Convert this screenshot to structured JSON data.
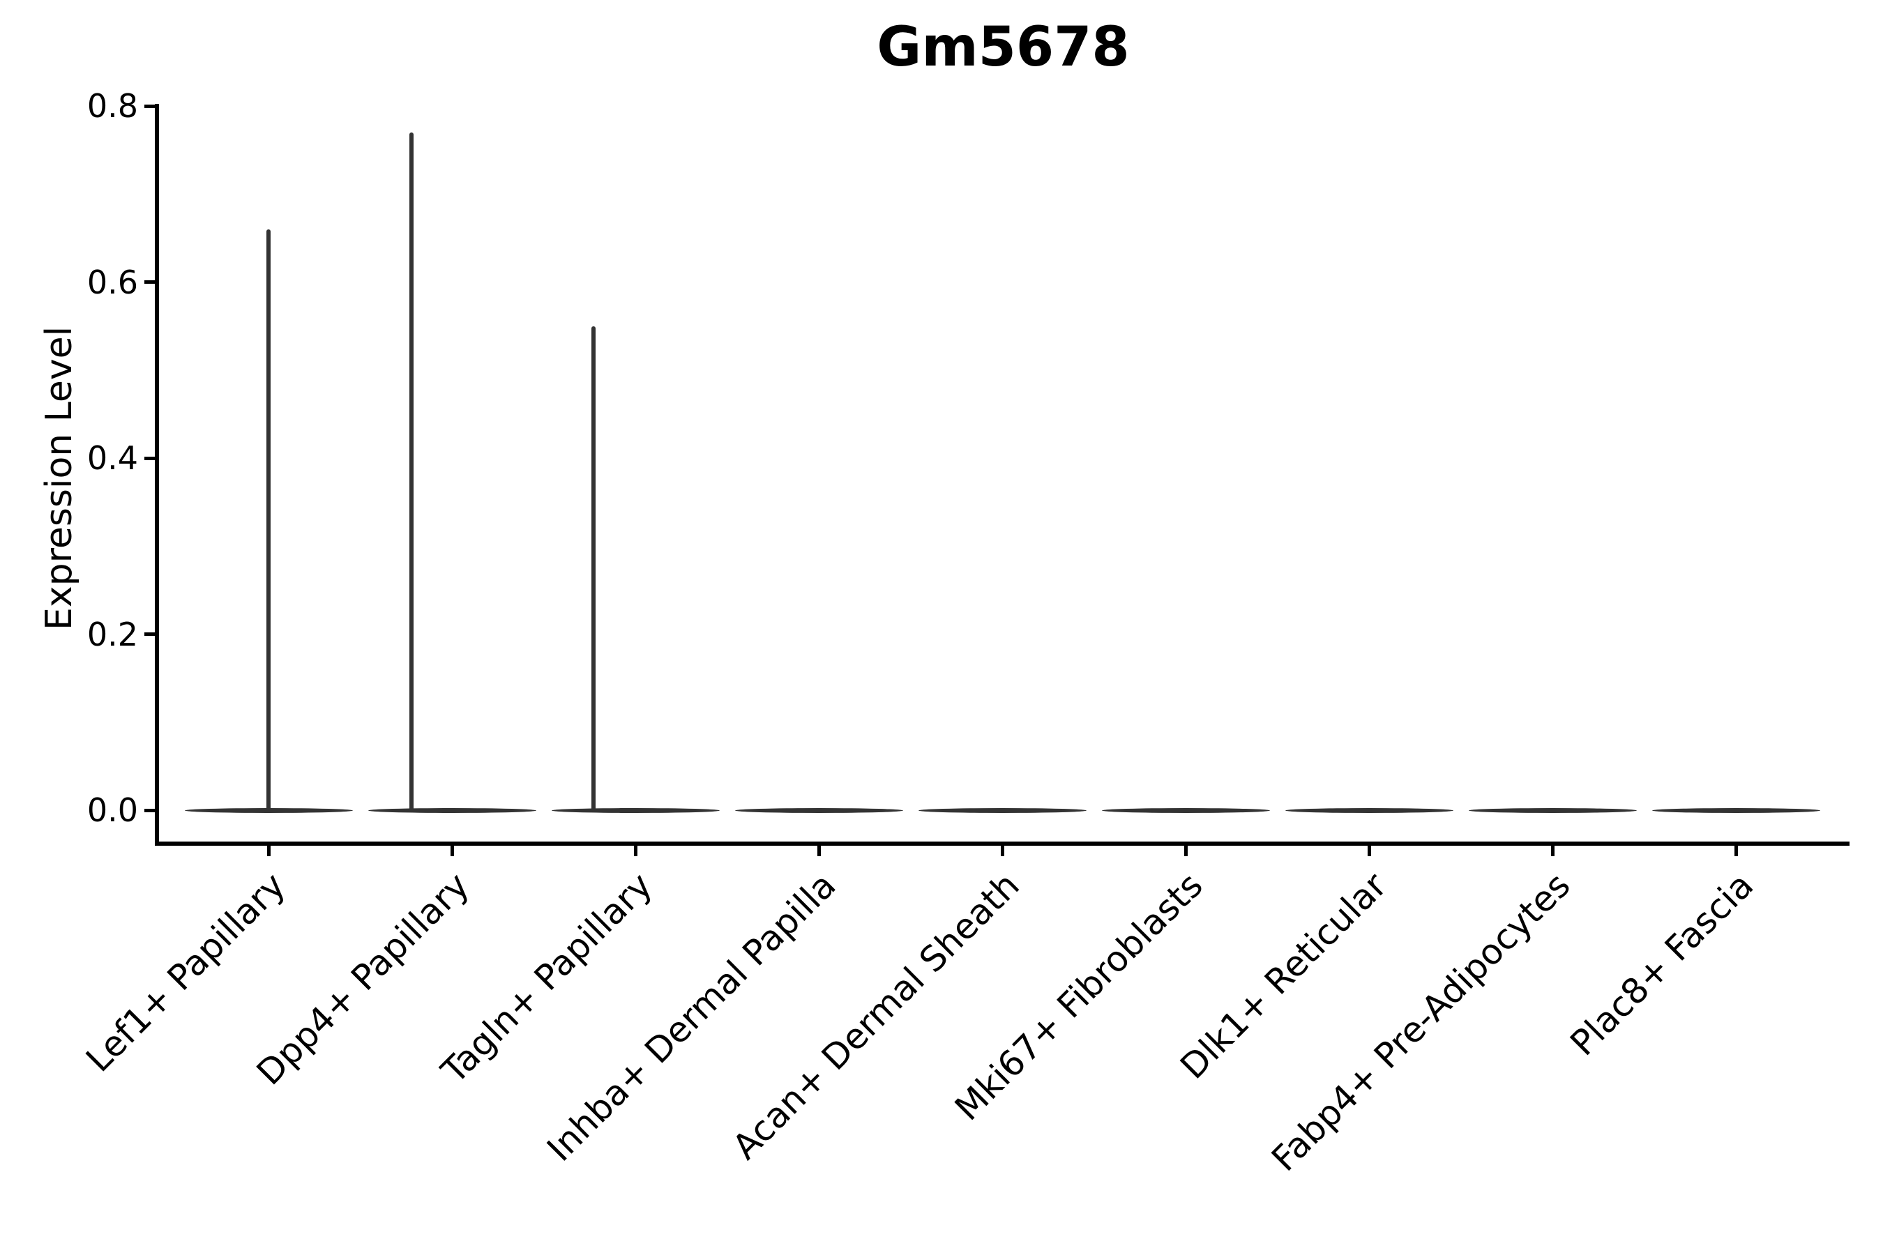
{
  "figure": {
    "title": "Gm5678",
    "y_axis_label": "Expression Level"
  },
  "chart_data": {
    "type": "violin",
    "title": "Gm5678",
    "xlabel": "",
    "ylabel": "Expression Level",
    "ylim": [
      0,
      0.8
    ],
    "yticks": [
      0.0,
      0.2,
      0.4,
      0.6,
      0.8
    ],
    "ytick_labels": [
      "0.0",
      "0.2",
      "0.4",
      "0.6",
      "0.8"
    ],
    "categories": [
      "Lef1+ Papillary",
      "Dpp4+ Papillary",
      "Tagln+ Papillary",
      "Inhba+ Dermal Papilla",
      "Acan+ Dermal Sheath",
      "Mki67+ Fibroblasts",
      "Dlk1+ Reticular",
      "Fabp4+ Pre-Adipocytes",
      "Plac8+ Fascia"
    ],
    "series": [
      {
        "name": "Gm5678 expression",
        "bulk_value": 0.0,
        "max_values": [
          0.66,
          0.77,
          0.55,
          0.0,
          0.0,
          0.0,
          0.0,
          0.0,
          0.0
        ],
        "spike_offset_frac": [
          0.0,
          -0.22,
          -0.23,
          0.0,
          0.0,
          0.0,
          0.0,
          0.0,
          0.0
        ]
      }
    ],
    "legend": false,
    "grid": false,
    "colors": {
      "violin": "#333333",
      "axis": "#000000",
      "background": "#ffffff"
    }
  }
}
